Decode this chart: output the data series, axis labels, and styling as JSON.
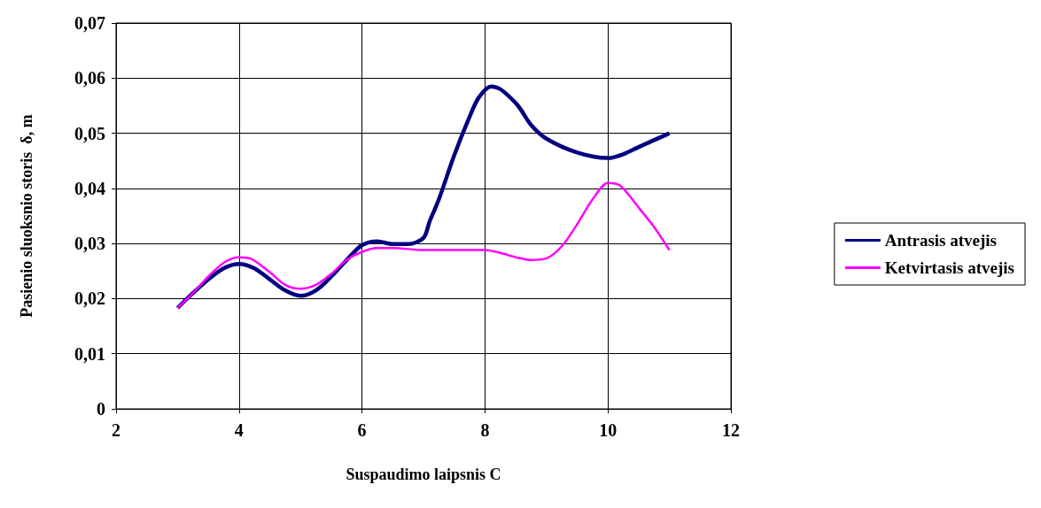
{
  "chart_data": {
    "type": "line",
    "xlabel": "Suspaudimo laipsnis C",
    "ylabel": "Pasienio sluoksnio storis  δ, m",
    "xlim": [
      2,
      12
    ],
    "xticks": [
      2,
      4,
      6,
      8,
      10,
      12
    ],
    "ylim": [
      0,
      0.07
    ],
    "yticks": [
      {
        "value": 0,
        "label": "0"
      },
      {
        "value": 0.01,
        "label": "0,01"
      },
      {
        "value": 0.02,
        "label": "0,02"
      },
      {
        "value": 0.03,
        "label": "0,03"
      },
      {
        "value": 0.04,
        "label": "0,04"
      },
      {
        "value": 0.05,
        "label": "0,05"
      },
      {
        "value": 0.06,
        "label": "0,06"
      },
      {
        "value": 0.07,
        "label": "0,07"
      }
    ],
    "grid": true,
    "legend": "right",
    "marker": "none",
    "line_style": "solid",
    "series": [
      {
        "name": "Antrasis atvejis",
        "color": "#000080",
        "x": [
          3,
          3.25,
          3.5,
          3.75,
          4,
          4.25,
          4.5,
          4.75,
          5,
          5.25,
          5.5,
          5.75,
          6,
          6.25,
          6.5,
          6.75,
          7,
          7.1,
          7.25,
          7.5,
          7.75,
          7.9,
          8.1,
          8.25,
          8.5,
          8.6,
          8.75,
          9,
          9.5,
          10,
          10.25,
          10.5,
          11
        ],
        "values": [
          0.0183,
          0.021,
          0.0235,
          0.0255,
          0.0263,
          0.0255,
          0.0235,
          0.0215,
          0.0205,
          0.0215,
          0.024,
          0.027,
          0.0297,
          0.0304,
          0.0299,
          0.0299,
          0.031,
          0.034,
          0.038,
          0.046,
          0.053,
          0.0565,
          0.0585,
          0.058,
          0.0555,
          0.054,
          0.0515,
          0.049,
          0.0465,
          0.0455,
          0.0462,
          0.0475,
          0.05
        ]
      },
      {
        "name": "Ketvirtasis atvejis",
        "color": "#ff00ff",
        "x": [
          3,
          3.25,
          3.5,
          3.75,
          4,
          4.2,
          4.5,
          4.75,
          5,
          5.25,
          5.5,
          5.75,
          6,
          6.25,
          6.5,
          7,
          7.5,
          8,
          8.25,
          8.5,
          8.75,
          9,
          9.25,
          9.5,
          9.75,
          10,
          10.2,
          10.5,
          10.75,
          11
        ],
        "values": [
          0.0183,
          0.021,
          0.024,
          0.0265,
          0.0275,
          0.0272,
          0.0248,
          0.0225,
          0.0218,
          0.0225,
          0.0245,
          0.027,
          0.0285,
          0.0292,
          0.0292,
          0.0288,
          0.0288,
          0.0288,
          0.0283,
          0.0275,
          0.027,
          0.0273,
          0.0295,
          0.0335,
          0.038,
          0.041,
          0.0405,
          0.0365,
          0.033,
          0.0288
        ]
      }
    ]
  }
}
